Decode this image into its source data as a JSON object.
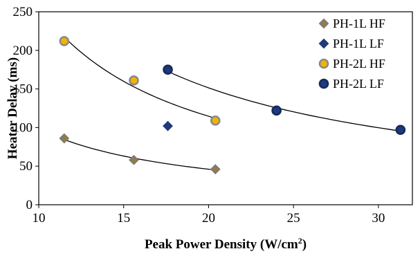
{
  "chart_data": {
    "type": "scatter",
    "title": "",
    "xlabel": "Peak Power Density (W/cm",
    "xlabel_superscript": "2",
    "xlabel_suffix": ")",
    "ylabel": "Heater Delay (ms)",
    "xlim": [
      10,
      32
    ],
    "ylim": [
      0,
      250
    ],
    "x_ticks": [
      "10",
      "15",
      "20",
      "25",
      "30"
    ],
    "y_ticks": [
      "0",
      "50",
      "100",
      "150",
      "200",
      "250"
    ],
    "grid": false,
    "legend_position": "top-right",
    "series": [
      {
        "name": "PH-1L HF",
        "marker": "diamond",
        "fill": "#9a7a3c",
        "stroke": "#7a7a7a",
        "points": [
          [
            11.5,
            86
          ],
          [
            15.6,
            58
          ],
          [
            20.4,
            46
          ]
        ],
        "trendline": true
      },
      {
        "name": "PH-1L LF",
        "marker": "diamond",
        "fill": "#1f3a7a",
        "stroke": "#1f3a7a",
        "points": [
          [
            17.6,
            102
          ]
        ],
        "trendline": false
      },
      {
        "name": "PH-2L HF",
        "marker": "circle",
        "fill": "#f2b400",
        "stroke": "#8a8a8a",
        "points": [
          [
            11.5,
            212
          ],
          [
            15.6,
            161
          ],
          [
            20.4,
            109
          ]
        ],
        "trendline": true
      },
      {
        "name": "PH-2L LF",
        "marker": "circle",
        "fill": "#1f3a7a",
        "stroke": "#16295c",
        "points": [
          [
            17.6,
            175
          ],
          [
            24.0,
            122
          ],
          [
            31.3,
            97
          ]
        ],
        "trendline": true
      }
    ]
  }
}
